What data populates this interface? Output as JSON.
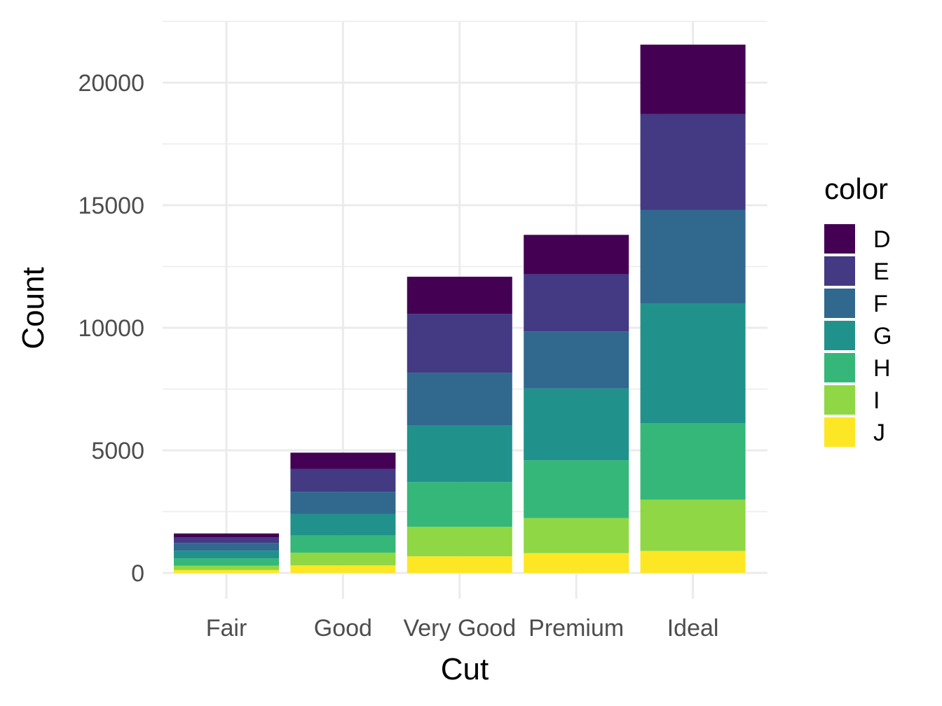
{
  "chart_data": {
    "type": "bar",
    "stacked": true,
    "categories": [
      "Fair",
      "Good",
      "Very Good",
      "Premium",
      "Ideal"
    ],
    "xlabel": "Cut",
    "ylabel": "Count",
    "ylim": [
      0,
      22500
    ],
    "yticks": [
      0,
      5000,
      10000,
      15000,
      20000
    ],
    "grid": true,
    "legend": {
      "title": "color",
      "position": "right"
    },
    "series": [
      {
        "name": "D",
        "color": "#440154",
        "values": [
          163,
          662,
          1513,
          1603,
          2834
        ]
      },
      {
        "name": "E",
        "color": "#443983",
        "values": [
          224,
          933,
          2400,
          2337,
          3903
        ]
      },
      {
        "name": "F",
        "color": "#31688e",
        "values": [
          312,
          909,
          2164,
          2331,
          3826
        ]
      },
      {
        "name": "G",
        "color": "#21918c",
        "values": [
          314,
          871,
          2299,
          2924,
          4884
        ]
      },
      {
        "name": "H",
        "color": "#35b779",
        "values": [
          303,
          702,
          1824,
          2360,
          3115
        ]
      },
      {
        "name": "I",
        "color": "#8fd744",
        "values": [
          175,
          522,
          1204,
          1428,
          2093
        ]
      },
      {
        "name": "J",
        "color": "#fde725",
        "values": [
          119,
          307,
          678,
          808,
          896
        ]
      }
    ]
  }
}
